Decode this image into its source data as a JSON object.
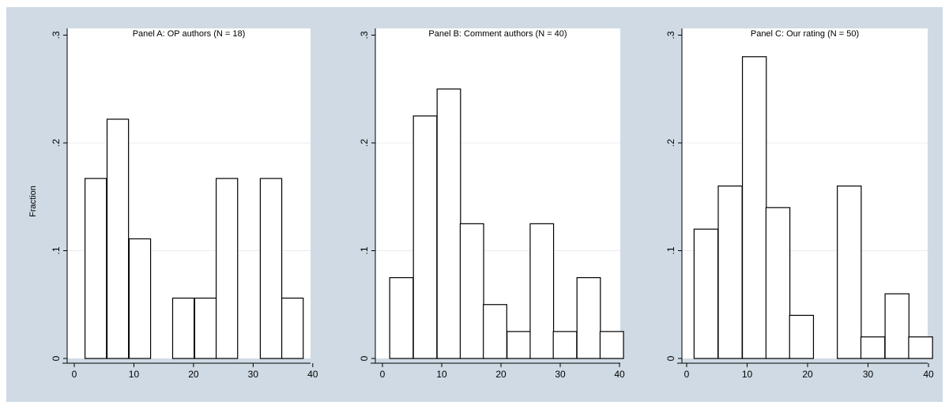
{
  "colors": {
    "outer_background": "#cfdae4",
    "plot_background": "#ffffff",
    "bar_fill": "#ffffff",
    "bar_stroke": "#000000",
    "gridline": "#e8ecef"
  },
  "ylabel": "Fraction",
  "chart_data": [
    {
      "type": "bar",
      "title": "Panel A: OP authors (N = 18)",
      "xlim": [
        0,
        40
      ],
      "ylim": [
        0,
        0.3
      ],
      "xticks": [
        "0",
        "10",
        "20",
        "30",
        "40"
      ],
      "yticks": [
        "0",
        ".1",
        ".2",
        ".3"
      ],
      "bar_width": 3.6,
      "x": [
        3.6,
        7.3,
        11.0,
        18.3,
        22.0,
        25.6,
        33.0,
        36.6
      ],
      "values": [
        0.167,
        0.222,
        0.111,
        0.056,
        0.056,
        0.167,
        0.167,
        0.056
      ],
      "grid": true
    },
    {
      "type": "bar",
      "title": "Panel B: Comment authors (N = 40)",
      "xlim": [
        0,
        40
      ],
      "ylim": [
        0,
        0.3
      ],
      "xticks": [
        "0",
        "10",
        "20",
        "30",
        "40"
      ],
      "yticks": [
        "0",
        ".1",
        ".2",
        ".3"
      ],
      "bar_width": 3.95,
      "x": [
        3.2,
        7.2,
        11.2,
        15.1,
        19.0,
        23.0,
        26.9,
        30.8,
        34.8,
        38.7
      ],
      "values": [
        0.075,
        0.225,
        0.25,
        0.125,
        0.05,
        0.025,
        0.125,
        0.025,
        0.075,
        0.025
      ],
      "grid": true
    },
    {
      "type": "bar",
      "title": "Panel C: Our rating (N = 50)",
      "xlim": [
        0,
        40
      ],
      "ylim": [
        0,
        0.3
      ],
      "xticks": [
        "0",
        "10",
        "20",
        "30",
        "40"
      ],
      "yticks": [
        "0",
        ".1",
        ".2",
        ".3"
      ],
      "bar_width": 3.95,
      "x": [
        3.2,
        7.2,
        11.2,
        15.1,
        19.0,
        26.9,
        30.8,
        34.8,
        38.7
      ],
      "values": [
        0.12,
        0.16,
        0.28,
        0.14,
        0.04,
        0.16,
        0.02,
        0.06,
        0.02
      ],
      "grid": true
    }
  ]
}
